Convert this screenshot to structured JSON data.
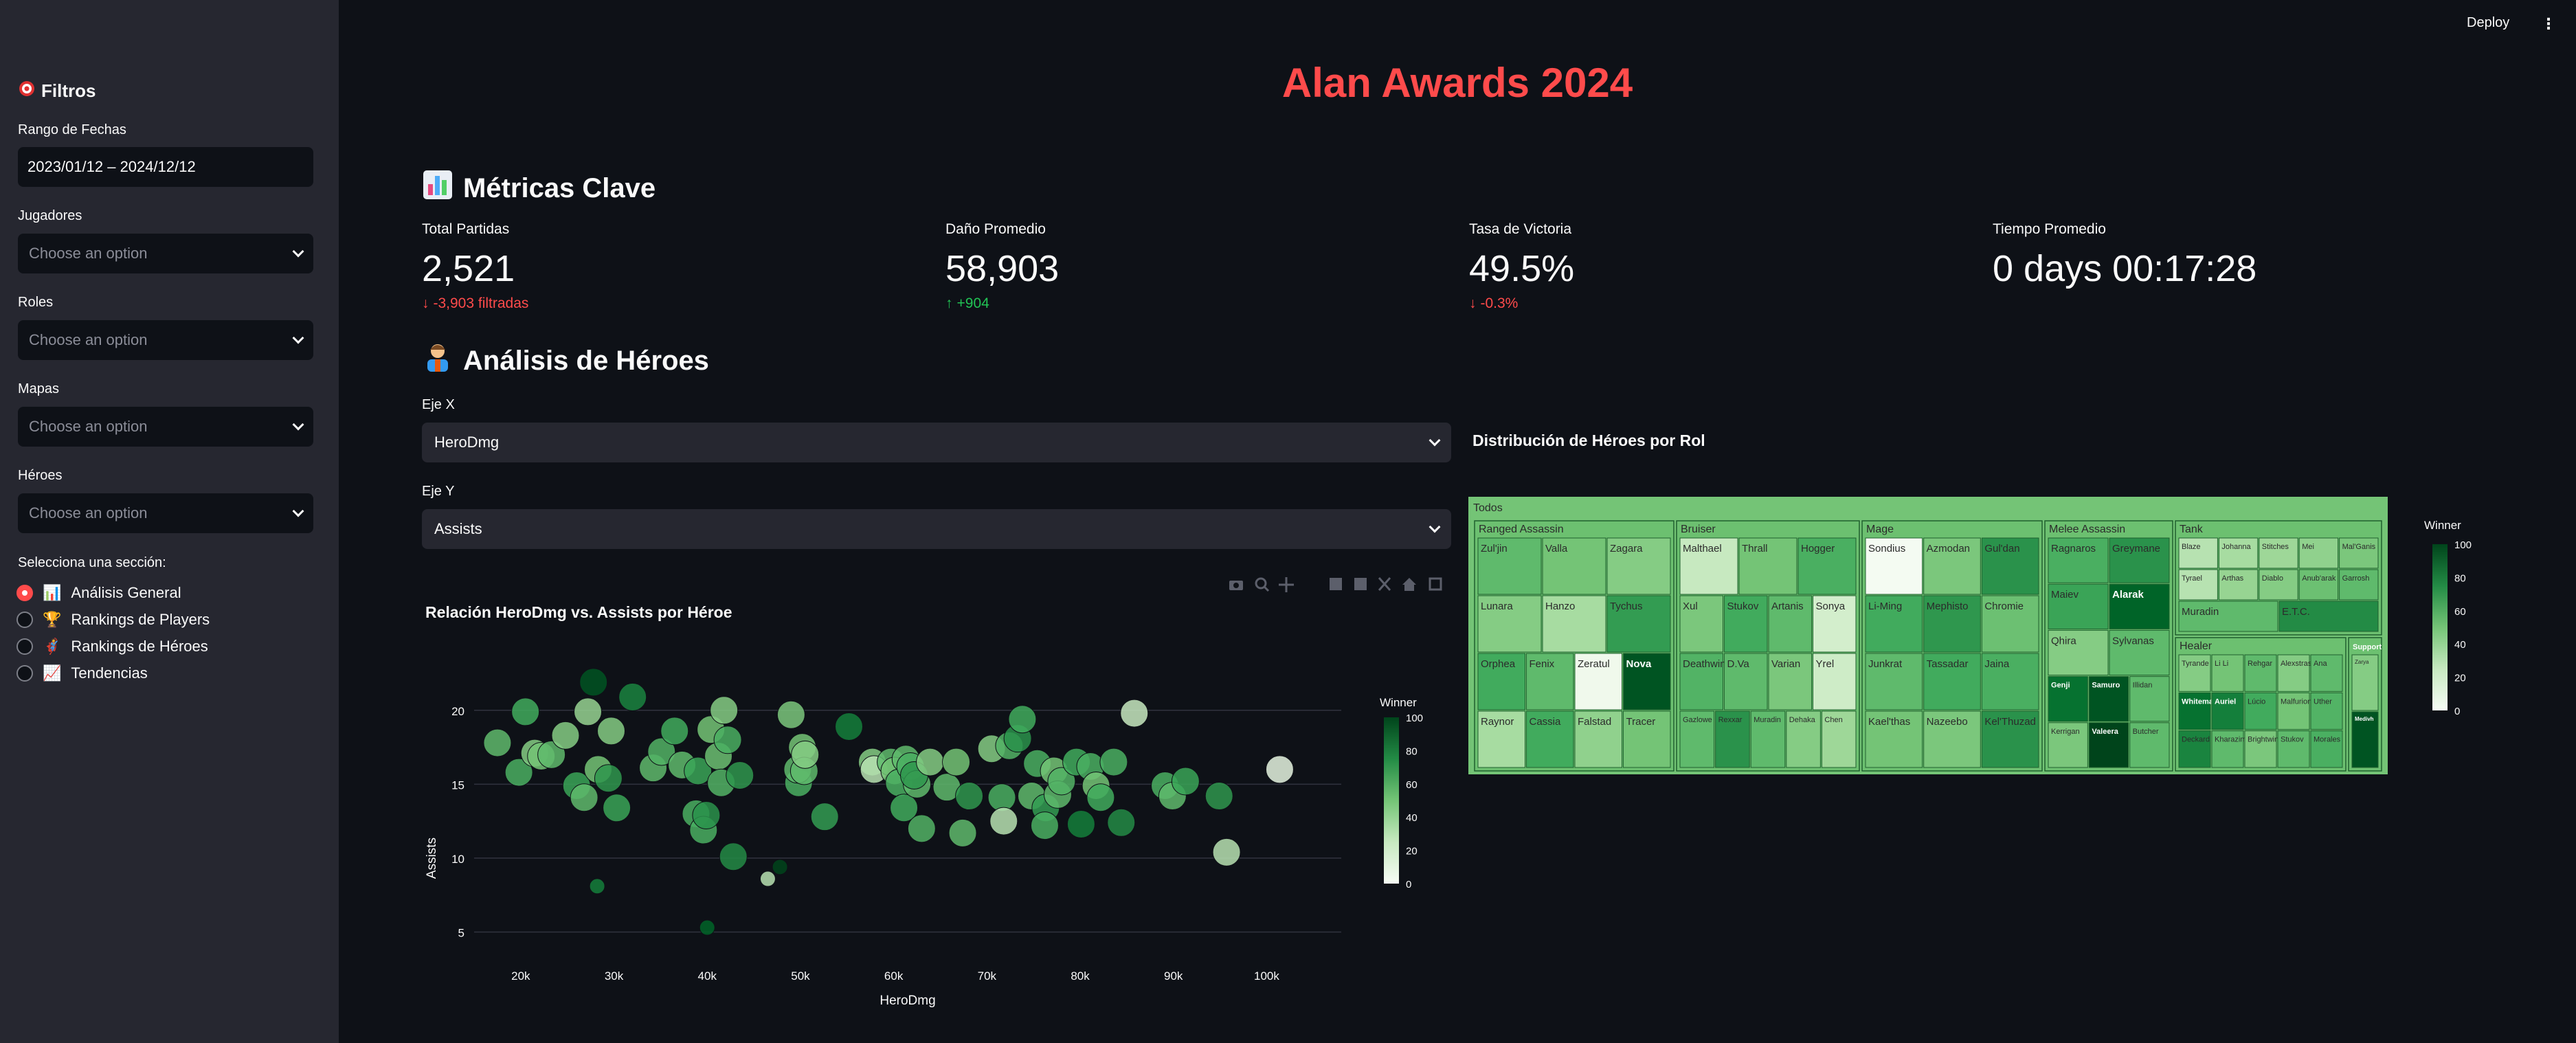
{
  "header": {
    "deploy_label": "Deploy",
    "menu_icon": "kebab-menu-icon",
    "title": "Alan Awards 2024"
  },
  "sidebar": {
    "title": "Filtros",
    "title_icon": "target-icon",
    "date_label": "Rango de Fechas",
    "date_value": "2023/01/12 – 2024/12/12",
    "players_label": "Jugadores",
    "roles_label": "Roles",
    "maps_label": "Mapas",
    "heroes_label": "Héroes",
    "placeholder": "Choose an option",
    "section_label": "Selecciona una sección:",
    "sections": [
      {
        "label": "Análisis General",
        "icon": "📊",
        "selected": true
      },
      {
        "label": "Rankings de Players",
        "icon": "🏆",
        "selected": false
      },
      {
        "label": "Rankings de Héroes",
        "icon": "🦸",
        "selected": false
      },
      {
        "label": "Tendencias",
        "icon": "📈",
        "selected": false
      }
    ]
  },
  "metrics_section": {
    "title": "Métricas Clave",
    "icon": "📊"
  },
  "metrics": [
    {
      "label": "Total Partidas",
      "value": "2,521",
      "delta": "-3,903 filtradas",
      "direction": "down"
    },
    {
      "label": "Daño Promedio",
      "value": "58,903",
      "delta": "+904",
      "direction": "up"
    },
    {
      "label": "Tasa de Victoria",
      "value": "49.5%",
      "delta": "-0.3%",
      "direction": "down"
    },
    {
      "label": "Tiempo Promedio",
      "value": "0 days 00:17:28",
      "delta": "",
      "direction": "none"
    }
  ],
  "heroes_section": {
    "title": "Análisis de Héroes",
    "icon": "🦸"
  },
  "axis_x": {
    "label": "Eje X",
    "value": "HeroDmg"
  },
  "axis_y": {
    "label": "Eje Y",
    "value": "Assists"
  },
  "colors": {
    "accent": "#ff4b4b",
    "positive": "#21c354",
    "sidebar": "#262730",
    "bg": "#0e1117"
  },
  "chart_data": [
    {
      "type": "scatter",
      "title": "Relación HeroDmg vs. Assists por Héroe",
      "xlabel": "HeroDmg",
      "ylabel": "Assists",
      "x_ticks": [
        "20k",
        "30k",
        "40k",
        "50k",
        "60k",
        "70k",
        "80k",
        "90k",
        "100k"
      ],
      "y_ticks": [
        "5",
        "10",
        "15",
        "20"
      ],
      "xlim": [
        15000,
        108000
      ],
      "ylim": [
        4,
        22.5
      ],
      "colorbar": {
        "title": "Winner",
        "ticks": [
          "0",
          "20",
          "40",
          "60",
          "80",
          "100"
        ]
      },
      "points": [
        {
          "x": 17500,
          "y": 17.8,
          "c": 55
        },
        {
          "x": 19800,
          "y": 15.8,
          "c": 60
        },
        {
          "x": 20500,
          "y": 19.9,
          "c": 62
        },
        {
          "x": 21500,
          "y": 17.1,
          "c": 45
        },
        {
          "x": 22200,
          "y": 16.9,
          "c": 50
        },
        {
          "x": 23300,
          "y": 17.0,
          "c": 55
        },
        {
          "x": 24800,
          "y": 18.3,
          "c": 45
        },
        {
          "x": 26000,
          "y": 14.9,
          "c": 65
        },
        {
          "x": 26800,
          "y": 14.1,
          "c": 55
        },
        {
          "x": 27200,
          "y": 19.9,
          "c": 40
        },
        {
          "x": 27800,
          "y": 21.9,
          "c": 95
        },
        {
          "x": 28300,
          "y": 16.0,
          "c": 50
        },
        {
          "x": 29400,
          "y": 15.4,
          "c": 70
        },
        {
          "x": 29700,
          "y": 18.6,
          "c": 45
        },
        {
          "x": 30300,
          "y": 13.4,
          "c": 65
        },
        {
          "x": 28200,
          "y": 8.1,
          "c": 80
        },
        {
          "x": 32000,
          "y": 20.9,
          "c": 78
        },
        {
          "x": 34200,
          "y": 16.1,
          "c": 55
        },
        {
          "x": 35100,
          "y": 17.2,
          "c": 58
        },
        {
          "x": 36500,
          "y": 18.6,
          "c": 62
        },
        {
          "x": 37300,
          "y": 16.3,
          "c": 55
        },
        {
          "x": 38800,
          "y": 13.0,
          "c": 60
        },
        {
          "x": 39000,
          "y": 15.9,
          "c": 65
        },
        {
          "x": 39600,
          "y": 11.9,
          "c": 60
        },
        {
          "x": 39900,
          "y": 12.9,
          "c": 72
        },
        {
          "x": 40400,
          "y": 18.7,
          "c": 50
        },
        {
          "x": 41200,
          "y": 16.9,
          "c": 52
        },
        {
          "x": 41500,
          "y": 15.1,
          "c": 58
        },
        {
          "x": 41800,
          "y": 20.0,
          "c": 45
        },
        {
          "x": 42200,
          "y": 18.0,
          "c": 60
        },
        {
          "x": 42800,
          "y": 10.1,
          "c": 75
        },
        {
          "x": 43500,
          "y": 15.6,
          "c": 70
        },
        {
          "x": 40000,
          "y": 5.3,
          "c": 90
        },
        {
          "x": 46500,
          "y": 8.6,
          "c": 30
        },
        {
          "x": 47800,
          "y": 9.4,
          "c": 100
        },
        {
          "x": 49000,
          "y": 19.7,
          "c": 48
        },
        {
          "x": 49800,
          "y": 15.1,
          "c": 60
        },
        {
          "x": 49700,
          "y": 16.0,
          "c": 55
        },
        {
          "x": 50200,
          "y": 17.5,
          "c": 50
        },
        {
          "x": 50400,
          "y": 15.9,
          "c": 55
        },
        {
          "x": 50500,
          "y": 17.0,
          "c": 45
        },
        {
          "x": 52600,
          "y": 12.8,
          "c": 68
        },
        {
          "x": 55200,
          "y": 18.9,
          "c": 80
        },
        {
          "x": 57700,
          "y": 16.5,
          "c": 45
        },
        {
          "x": 57900,
          "y": 16.0,
          "c": 30
        },
        {
          "x": 59700,
          "y": 16.5,
          "c": 55
        },
        {
          "x": 60100,
          "y": 15.9,
          "c": 50
        },
        {
          "x": 60600,
          "y": 15.1,
          "c": 60
        },
        {
          "x": 61100,
          "y": 13.4,
          "c": 62
        },
        {
          "x": 61300,
          "y": 16.7,
          "c": 55
        },
        {
          "x": 61800,
          "y": 16.2,
          "c": 60
        },
        {
          "x": 62500,
          "y": 15.0,
          "c": 55
        },
        {
          "x": 63000,
          "y": 12.0,
          "c": 58
        },
        {
          "x": 62200,
          "y": 15.6,
          "c": 70
        },
        {
          "x": 63900,
          "y": 16.5,
          "c": 45
        },
        {
          "x": 65700,
          "y": 14.8,
          "c": 55
        },
        {
          "x": 66700,
          "y": 16.5,
          "c": 50
        },
        {
          "x": 67400,
          "y": 11.7,
          "c": 55
        },
        {
          "x": 68100,
          "y": 14.2,
          "c": 70
        },
        {
          "x": 70500,
          "y": 17.4,
          "c": 45
        },
        {
          "x": 71600,
          "y": 14.1,
          "c": 60
        },
        {
          "x": 71800,
          "y": 12.5,
          "c": 30
        },
        {
          "x": 72400,
          "y": 17.6,
          "c": 58
        },
        {
          "x": 73300,
          "y": 18.1,
          "c": 72
        },
        {
          "x": 73800,
          "y": 19.4,
          "c": 62
        },
        {
          "x": 74800,
          "y": 14.2,
          "c": 55
        },
        {
          "x": 75400,
          "y": 16.4,
          "c": 60
        },
        {
          "x": 76300,
          "y": 13.4,
          "c": 68
        },
        {
          "x": 76200,
          "y": 12.2,
          "c": 60
        },
        {
          "x": 77200,
          "y": 15.9,
          "c": 50
        },
        {
          "x": 77600,
          "y": 14.3,
          "c": 55
        },
        {
          "x": 78000,
          "y": 15.2,
          "c": 58
        },
        {
          "x": 79600,
          "y": 16.5,
          "c": 62
        },
        {
          "x": 80100,
          "y": 12.3,
          "c": 80
        },
        {
          "x": 81100,
          "y": 16.2,
          "c": 60
        },
        {
          "x": 81700,
          "y": 14.9,
          "c": 50
        },
        {
          "x": 82200,
          "y": 14.1,
          "c": 62
        },
        {
          "x": 83600,
          "y": 16.5,
          "c": 60
        },
        {
          "x": 84400,
          "y": 12.4,
          "c": 75
        },
        {
          "x": 85800,
          "y": 19.8,
          "c": 25
        },
        {
          "x": 89100,
          "y": 14.9,
          "c": 60
        },
        {
          "x": 89900,
          "y": 14.2,
          "c": 55
        },
        {
          "x": 91300,
          "y": 15.2,
          "c": 65
        },
        {
          "x": 94900,
          "y": 14.2,
          "c": 70
        },
        {
          "x": 95700,
          "y": 10.4,
          "c": 30
        },
        {
          "x": 101400,
          "y": 16.0,
          "c": 12
        }
      ]
    },
    {
      "type": "treemap",
      "title": "Distribución de Héroes por Rol",
      "root": "Todos",
      "colorbar": {
        "title": "Winner",
        "ticks": [
          "0",
          "20",
          "40",
          "60",
          "80",
          "100"
        ]
      },
      "roles": [
        {
          "name": "Ranged Assassin",
          "heroes": [
            {
              "name": "Zul'jin",
              "c": 55
            },
            {
              "name": "Valla",
              "c": 50
            },
            {
              "name": "Zagara",
              "c": 45
            },
            {
              "name": "Lunara",
              "c": 45
            },
            {
              "name": "Hanzo",
              "c": 35
            },
            {
              "name": "Tychus",
              "c": 68
            },
            {
              "name": "Orphea",
              "c": 62
            },
            {
              "name": "Fenix",
              "c": 55
            },
            {
              "name": "Zeratul",
              "c": 5
            },
            {
              "name": "Nova",
              "c": 95
            },
            {
              "name": "Raynor",
              "c": 35
            },
            {
              "name": "Cassia",
              "c": 62
            },
            {
              "name": "Falstad",
              "c": 42
            },
            {
              "name": "Tracer",
              "c": 50
            }
          ]
        },
        {
          "name": "Bruiser",
          "heroes": [
            {
              "name": "Malthael",
              "c": 25
            },
            {
              "name": "Thrall",
              "c": 50
            },
            {
              "name": "Hogger",
              "c": 60
            },
            {
              "name": "Xul",
              "c": 48
            },
            {
              "name": "Stukov",
              "c": 62
            },
            {
              "name": "Artanis",
              "c": 55
            },
            {
              "name": "Sonya",
              "c": 20
            },
            {
              "name": "Deathwing",
              "c": 58
            },
            {
              "name": "D.Va",
              "c": 55
            },
            {
              "name": "Varian",
              "c": 48
            },
            {
              "name": "Yrel",
              "c": 22
            },
            {
              "name": "Gazlowe",
              "c": 55
            },
            {
              "name": "Rexxar",
              "c": 72
            },
            {
              "name": "Muradin",
              "c": 55
            },
            {
              "name": "Dehaka",
              "c": 45
            },
            {
              "name": "Chen",
              "c": 38
            }
          ]
        },
        {
          "name": "Mage",
          "heroes": [
            {
              "name": "Sondius",
              "c": 2
            },
            {
              "name": "Azmodan",
              "c": 48
            },
            {
              "name": "Gul'dan",
              "c": 72
            },
            {
              "name": "Li-Ming",
              "c": 62
            },
            {
              "name": "Mephisto",
              "c": 70
            },
            {
              "name": "Chromie",
              "c": 52
            },
            {
              "name": "Junkrat",
              "c": 55
            },
            {
              "name": "Tassadar",
              "c": 62
            },
            {
              "name": "Jaina",
              "c": 60
            },
            {
              "name": "Kael'thas",
              "c": 50
            },
            {
              "name": "Nazeebo",
              "c": 48
            },
            {
              "name": "Kel'Thuzad",
              "c": 72
            }
          ]
        },
        {
          "name": "Melee Assassin",
          "heroes": [
            {
              "name": "Ragnaros",
              "c": 60
            },
            {
              "name": "Greymane",
              "c": 72
            },
            {
              "name": "Maiev",
              "c": 65
            },
            {
              "name": "Alarak",
              "c": 90
            },
            {
              "name": "Qhira",
              "c": 45
            },
            {
              "name": "Sylvanas",
              "c": 55
            },
            {
              "name": "Genji",
              "c": 85
            },
            {
              "name": "Samuro",
              "c": 95
            },
            {
              "name": "Illidan",
              "c": 55
            },
            {
              "name": "Kerrigan",
              "c": 48
            },
            {
              "name": "Valeera",
              "c": 100
            },
            {
              "name": "Butcher",
              "c": 55
            }
          ]
        },
        {
          "name": "Tank",
          "heroes": [
            {
              "name": "Blaze",
              "c": 30
            },
            {
              "name": "Johanna",
              "c": 35
            },
            {
              "name": "Stitches",
              "c": 38
            },
            {
              "name": "Mei",
              "c": 42
            },
            {
              "name": "Mal'Ganis",
              "c": 48
            },
            {
              "name": "Tyrael",
              "c": 30
            },
            {
              "name": "Arthas",
              "c": 40
            },
            {
              "name": "Diablo",
              "c": 45
            },
            {
              "name": "Anub'arak",
              "c": 52
            },
            {
              "name": "Garrosh",
              "c": 55
            },
            {
              "name": "Muradin",
              "c": 55
            },
            {
              "name": "E.T.C.",
              "c": 75
            }
          ]
        },
        {
          "name": "Healer",
          "heroes": [
            {
              "name": "Tyrande",
              "c": 45
            },
            {
              "name": "Li Li",
              "c": 50
            },
            {
              "name": "Rehgar",
              "c": 55
            },
            {
              "name": "Alexstrasza",
              "c": 45
            },
            {
              "name": "Ana",
              "c": 55
            },
            {
              "name": "Whitemane",
              "c": 85
            },
            {
              "name": "Auriel",
              "c": 80
            },
            {
              "name": "Lúcio",
              "c": 62
            },
            {
              "name": "Malfurion",
              "c": 50
            },
            {
              "name": "Uther",
              "c": 58
            },
            {
              "name": "Deckard",
              "c": 78
            },
            {
              "name": "Kharazim",
              "c": 55
            },
            {
              "name": "Brightwing",
              "c": 48
            },
            {
              "name": "Stukov",
              "c": 55
            },
            {
              "name": "Morales",
              "c": 60
            }
          ]
        },
        {
          "name": "Support",
          "heroes": [
            {
              "name": "Zarya",
              "c": 45
            },
            {
              "name": "Medivh",
              "c": 95
            }
          ]
        }
      ]
    }
  ]
}
